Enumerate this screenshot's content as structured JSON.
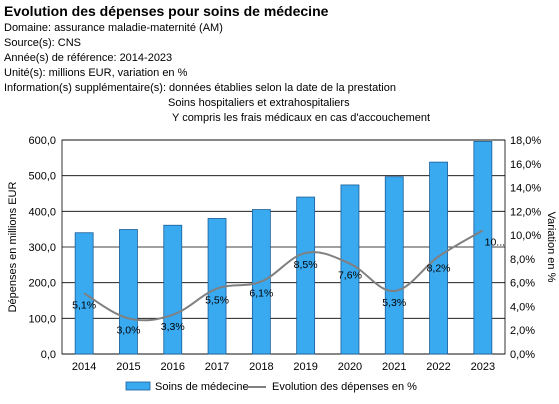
{
  "header": {
    "title": "Evolution des dépenses pour soins de médecine",
    "domaine": "Domaine: assurance maladie-maternité (AM)",
    "source": "Source(s): CNS",
    "annees": "Année(s) de référence: 2014-2023",
    "unite": "Unité(s): millions EUR, variation en %",
    "info1": "Information(s) supplémentaire(s): données établies selon la date de la prestation",
    "info2": "Soins hospitaliers et extrahospitaliers",
    "info3": "Y compris les frais médicaux en cas d'accouchement"
  },
  "chart_data": {
    "type": "bar",
    "categories": [
      "2014",
      "2015",
      "2016",
      "2017",
      "2018",
      "2019",
      "2020",
      "2021",
      "2022",
      "2023"
    ],
    "series": [
      {
        "name": "Soins de médecine",
        "type": "bar",
        "axis": "left",
        "values": [
          340,
          349,
          361,
          380,
          405,
          440,
          474,
          497,
          538,
          596
        ]
      },
      {
        "name": "Evolution des dépenses en %",
        "type": "line",
        "axis": "right",
        "values": [
          5.1,
          3.0,
          3.3,
          5.5,
          6.1,
          8.5,
          7.6,
          5.3,
          8.2,
          10.4
        ],
        "labels": [
          "5,1%",
          "3,0%",
          "3,3%",
          "5,5%",
          "6,1%",
          "8,5%",
          "7,6%",
          "5,3%",
          "8,2%",
          "10..."
        ]
      }
    ],
    "ylabel": "Dépenses en millions EUR",
    "y2label": "Variation en %",
    "ylim": [
      0,
      600
    ],
    "y2lim": [
      0,
      18
    ],
    "yticks": [
      "0,0",
      "100,0",
      "200,0",
      "300,0",
      "400,0",
      "500,0",
      "600,0"
    ],
    "y2ticks": [
      "0,0%",
      "2,0%",
      "4,0%",
      "6,0%",
      "8,0%",
      "10,0%",
      "12,0%",
      "14,0%",
      "16,0%",
      "18,0%"
    ],
    "grid": true,
    "legend": "bottom",
    "colors": {
      "bar": "#39a9f0",
      "bar_edge": "#1a5e99",
      "line": "#808080",
      "grid": "#000000"
    }
  }
}
